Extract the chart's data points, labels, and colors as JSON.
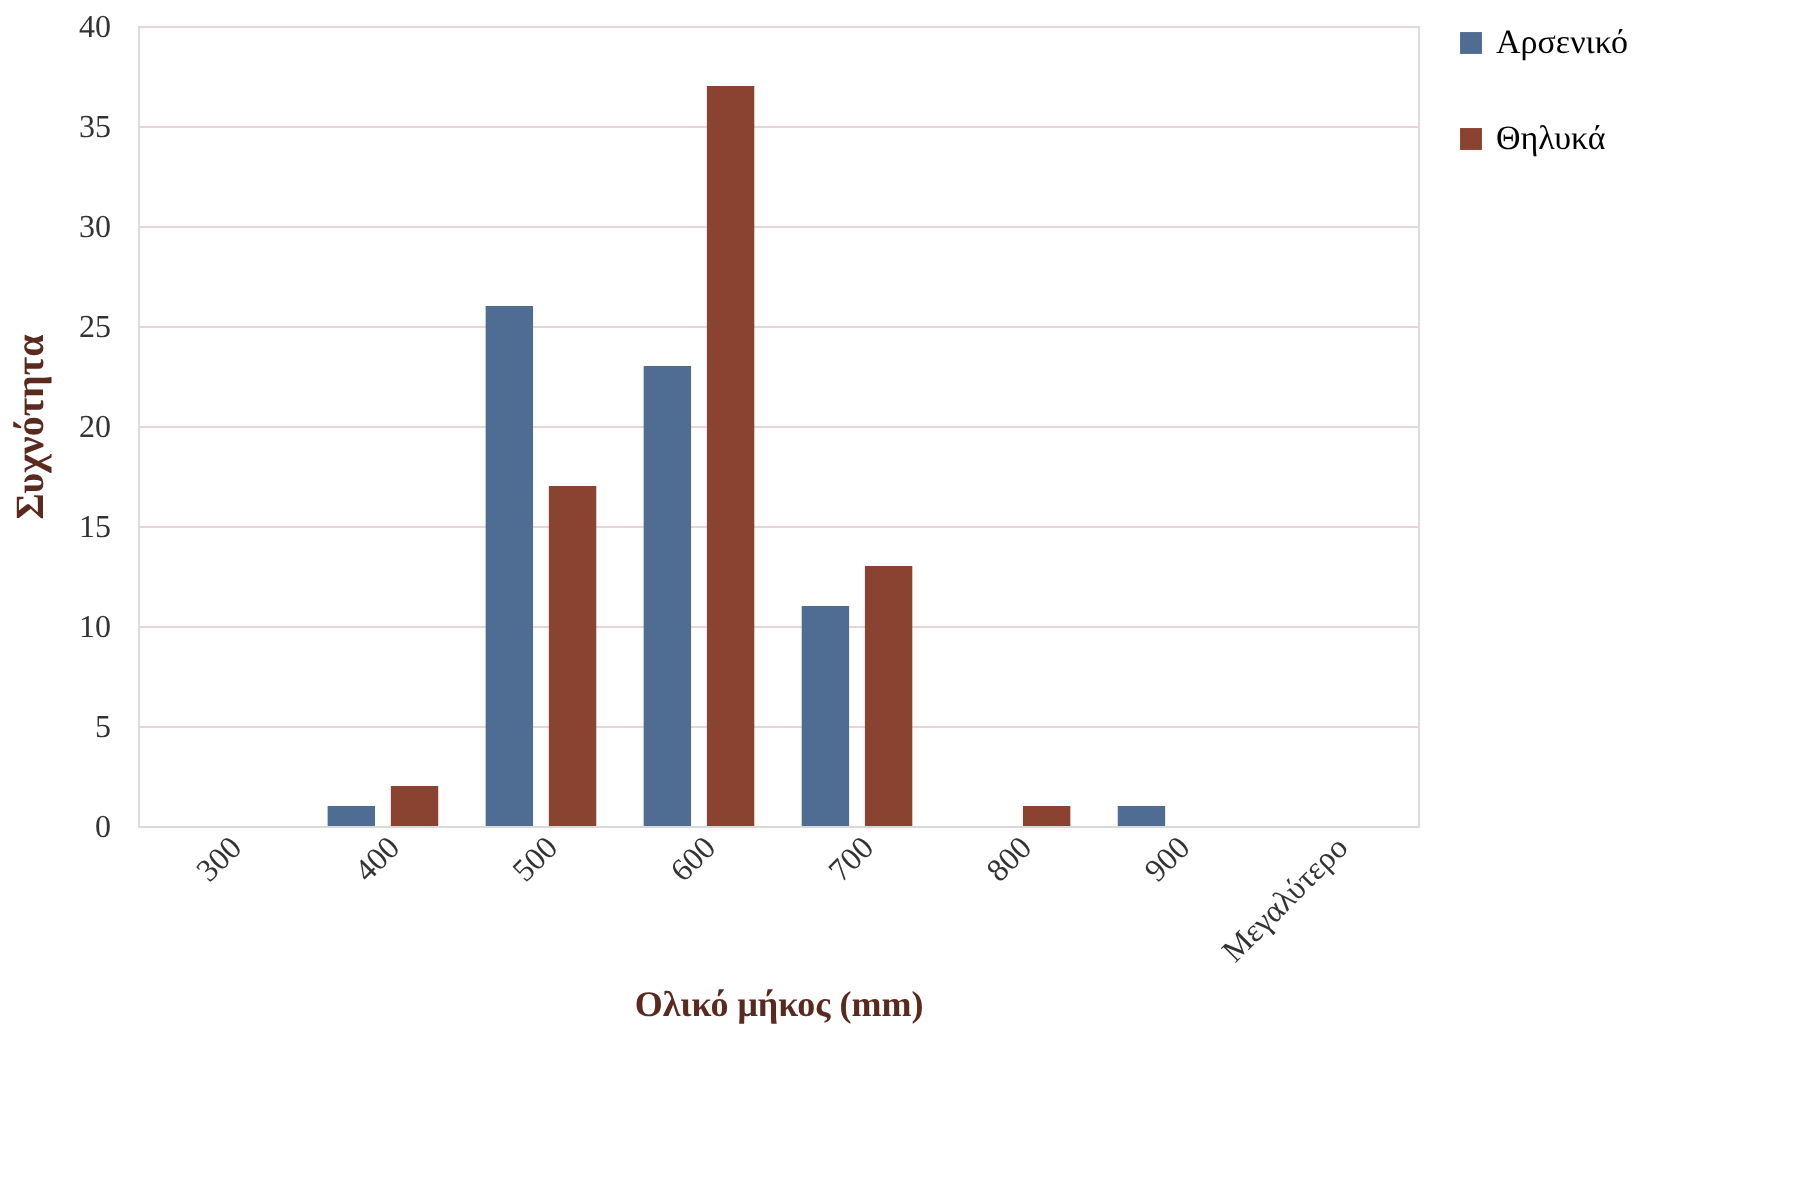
{
  "chart_data": {
    "type": "bar",
    "xlabel": "Ολικό μήκος (mm)",
    "ylabel": "Συχνότητα",
    "categories": [
      "300",
      "400",
      "500",
      "600",
      "700",
      "800",
      "900",
      "Μεγαλύτερο"
    ],
    "series": [
      {
        "name": "Αρσενικό",
        "color": "#4f6d93",
        "values": [
          0,
          1,
          26,
          23,
          11,
          0,
          1,
          0
        ]
      },
      {
        "name": "Θηλυκά",
        "color": "#8a4330",
        "values": [
          0,
          2,
          17,
          37,
          13,
          1,
          0,
          0
        ]
      }
    ],
    "ylim": [
      0,
      40
    ],
    "yticks": [
      0,
      5,
      10,
      15,
      20,
      25,
      30,
      35,
      40
    ],
    "grid": "y",
    "legend": "right"
  }
}
